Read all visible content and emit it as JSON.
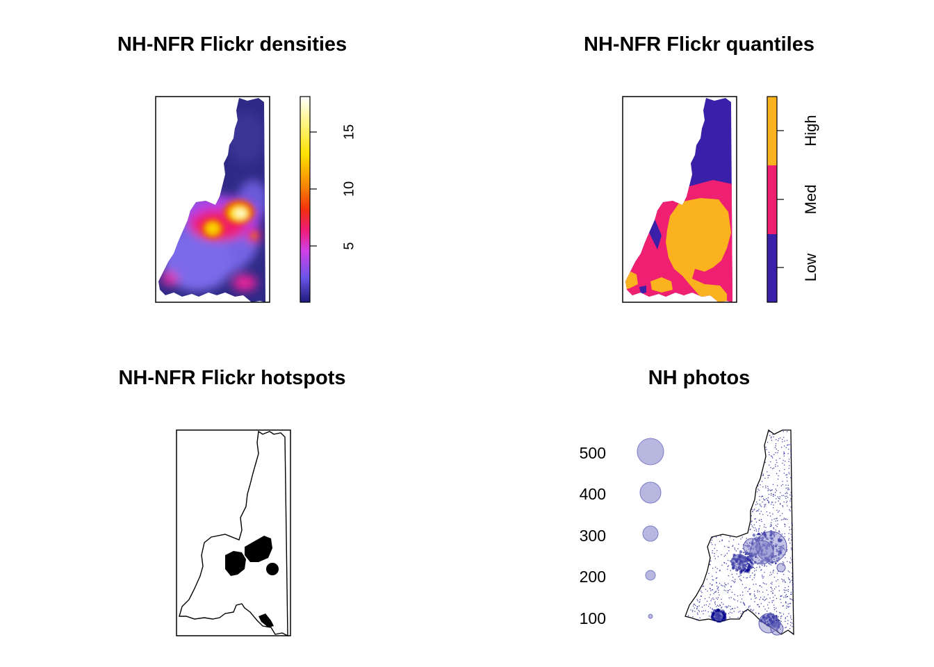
{
  "panels": {
    "densities": {
      "title": "NH-NFR Flickr densities",
      "legend_ticks": [
        "5",
        "10",
        "15"
      ],
      "legend_range": [
        0,
        18
      ]
    },
    "quantiles": {
      "title": "NH-NFR Flickr quantiles",
      "legend_labels": [
        "Low",
        "Med",
        "High"
      ]
    },
    "hotspots": {
      "title": "NH-NFR Flickr hotspots"
    },
    "photos": {
      "title": "NH photos",
      "size_legend": [
        "500",
        "400",
        "300",
        "200",
        "100"
      ]
    }
  },
  "colors": {
    "low": "#3a1fa8",
    "med": "#ef1f72",
    "high": "#fbb21f",
    "photo_point": "#00008b",
    "photo_circle": "#7c7cc6"
  }
}
